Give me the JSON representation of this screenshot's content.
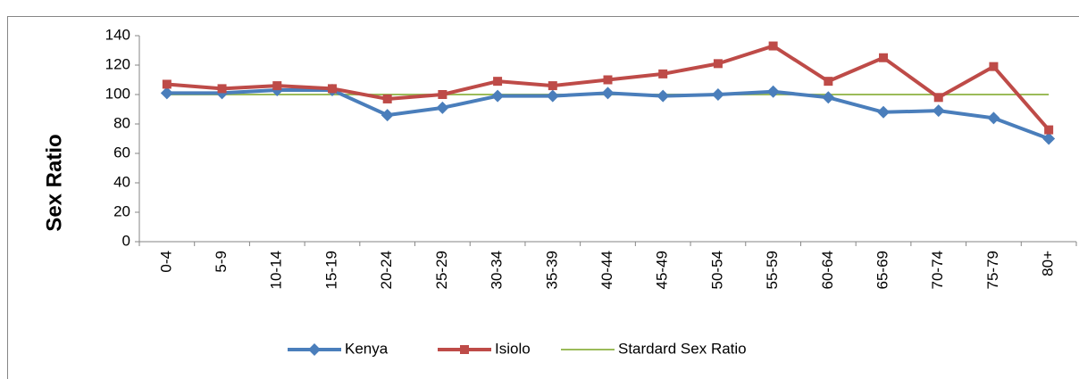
{
  "chart_data": {
    "type": "line",
    "ylabel": "Sex Ratio",
    "categories": [
      "0-4",
      "5-9",
      "10-14",
      "15-19",
      "20-24",
      "25-29",
      "30-34",
      "35-39",
      "40-44",
      "45-49",
      "50-54",
      "55-59",
      "60-64",
      "65-69",
      "70-74",
      "75-79",
      "80+"
    ],
    "series": [
      {
        "name": "Kenya",
        "color": "#4a7ebb",
        "marker": "diamond",
        "values": [
          101,
          101,
          103,
          103,
          86,
          91,
          99,
          99,
          101,
          99,
          100,
          102,
          98,
          88,
          89,
          84,
          70
        ]
      },
      {
        "name": "Isiolo",
        "color": "#be4b48",
        "marker": "square",
        "values": [
          107,
          104,
          106,
          104,
          97,
          100,
          109,
          106,
          110,
          114,
          121,
          133,
          109,
          125,
          98,
          119,
          76
        ]
      },
      {
        "name": "Stardard Sex Ratio",
        "color": "#9bbb59",
        "values": [
          100,
          100,
          100,
          100,
          100,
          100,
          100,
          100,
          100,
          100,
          100,
          100,
          100,
          100,
          100,
          100,
          100
        ]
      }
    ],
    "ylim": [
      0,
      140
    ],
    "yticks": [
      0,
      20,
      40,
      60,
      80,
      100,
      120,
      140
    ],
    "legend": "bottom"
  }
}
